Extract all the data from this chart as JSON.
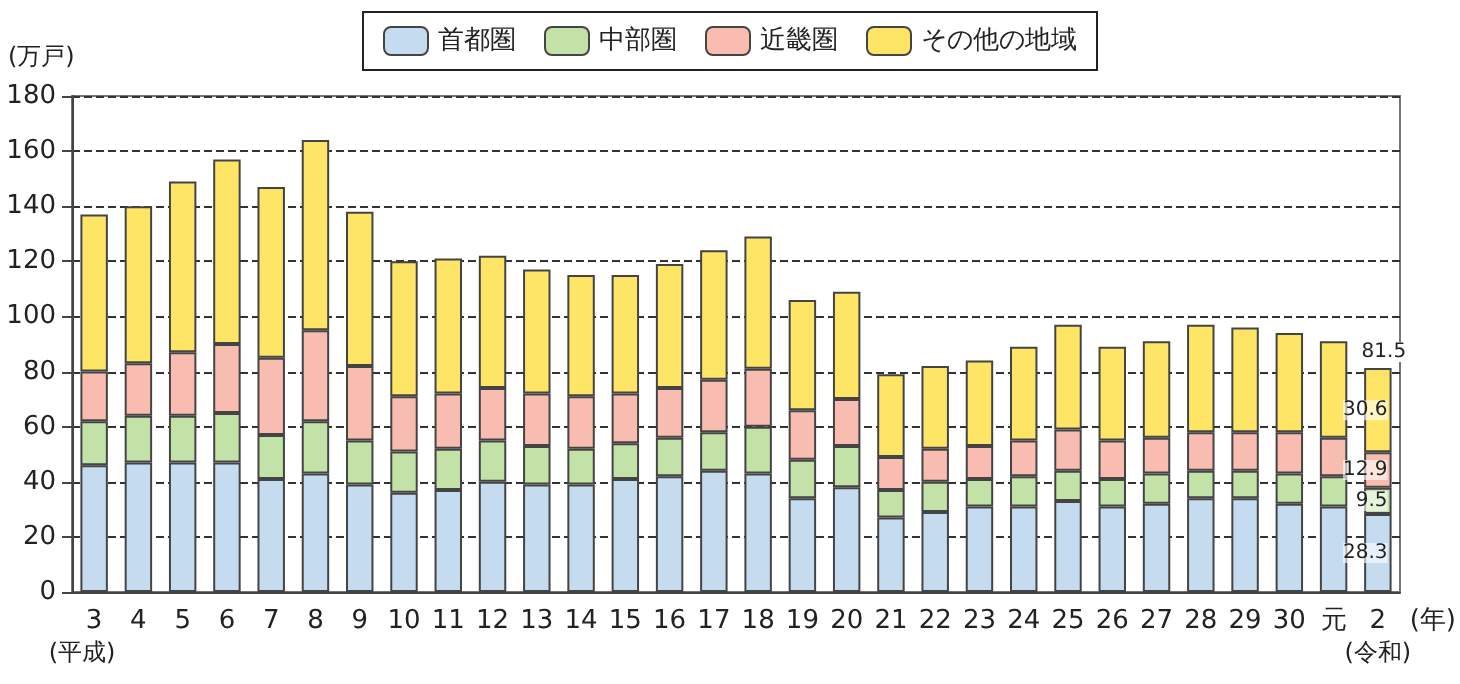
{
  "chart_data": {
    "type": "bar",
    "stacked": true,
    "ylabel": "(万戸)",
    "xlabel": "(年)",
    "categories": [
      "3",
      "4",
      "5",
      "6",
      "7",
      "8",
      "9",
      "10",
      "11",
      "12",
      "13",
      "14",
      "15",
      "16",
      "17",
      "18",
      "19",
      "20",
      "21",
      "22",
      "23",
      "24",
      "25",
      "26",
      "27",
      "28",
      "29",
      "30",
      "元",
      "2"
    ],
    "series": [
      {
        "name": "首都圏",
        "color": "#c5dcf0",
        "values": [
          46,
          47,
          47,
          47,
          41,
          43,
          39,
          36,
          37,
          40,
          39,
          39,
          41,
          42,
          44,
          43,
          34,
          38,
          27,
          29,
          31,
          31,
          33,
          31,
          32,
          34,
          34,
          32,
          31,
          28.3
        ],
        "value_labels": [
          null,
          null,
          null,
          null,
          null,
          null,
          null,
          null,
          null,
          null,
          null,
          null,
          null,
          null,
          null,
          null,
          null,
          null,
          null,
          null,
          null,
          null,
          null,
          null,
          null,
          null,
          null,
          null,
          null,
          "28.3"
        ]
      },
      {
        "name": "中部圏",
        "color": "#c3e2a8",
        "values": [
          16,
          17,
          17,
          18,
          16,
          19,
          16,
          15,
          15,
          15,
          14,
          13,
          13,
          14,
          14,
          17,
          14,
          15,
          10,
          11,
          10,
          11,
          11,
          10,
          11,
          10,
          10,
          11,
          11,
          9.5
        ],
        "value_labels": [
          null,
          null,
          null,
          null,
          null,
          null,
          null,
          null,
          null,
          null,
          null,
          null,
          null,
          null,
          null,
          null,
          null,
          null,
          null,
          null,
          null,
          null,
          null,
          null,
          null,
          null,
          null,
          null,
          null,
          "9.5"
        ]
      },
      {
        "name": "近畿圏",
        "color": "#f8bcb0",
        "values": [
          18,
          19,
          23,
          25,
          28,
          33,
          27,
          20,
          20,
          19,
          19,
          19,
          18,
          18,
          19,
          21,
          18,
          17,
          12,
          12,
          12,
          13,
          15,
          14,
          13,
          14,
          14,
          15,
          14,
          12.9
        ],
        "value_labels": [
          null,
          null,
          null,
          null,
          null,
          null,
          null,
          null,
          null,
          null,
          null,
          null,
          null,
          null,
          null,
          null,
          null,
          null,
          null,
          null,
          null,
          null,
          null,
          null,
          null,
          null,
          null,
          null,
          null,
          "12.9"
        ]
      },
      {
        "name": "その他の地域",
        "color": "#ffe566",
        "values": [
          57,
          57,
          62,
          67,
          62,
          69,
          56,
          49,
          49,
          48,
          45,
          44,
          43,
          45,
          47,
          48,
          40,
          39,
          30,
          30,
          31,
          34,
          38,
          34,
          35,
          39,
          38,
          36,
          35,
          30.6
        ],
        "value_labels": [
          null,
          null,
          null,
          null,
          null,
          null,
          null,
          null,
          null,
          null,
          null,
          null,
          null,
          null,
          null,
          null,
          null,
          null,
          null,
          null,
          null,
          null,
          null,
          null,
          null,
          null,
          null,
          null,
          null,
          "30.6"
        ]
      }
    ],
    "totals": [
      null,
      null,
      null,
      null,
      null,
      null,
      null,
      null,
      null,
      null,
      null,
      null,
      null,
      null,
      null,
      null,
      null,
      null,
      null,
      null,
      null,
      null,
      null,
      null,
      null,
      null,
      null,
      null,
      null,
      "81.5"
    ],
    "ylim": [
      0,
      180
    ],
    "yticks": [
      0,
      20,
      40,
      60,
      80,
      100,
      120,
      140,
      160,
      180
    ],
    "grid": "y",
    "legend": "top",
    "annotations": [
      "(平成)",
      "(令和)"
    ]
  }
}
